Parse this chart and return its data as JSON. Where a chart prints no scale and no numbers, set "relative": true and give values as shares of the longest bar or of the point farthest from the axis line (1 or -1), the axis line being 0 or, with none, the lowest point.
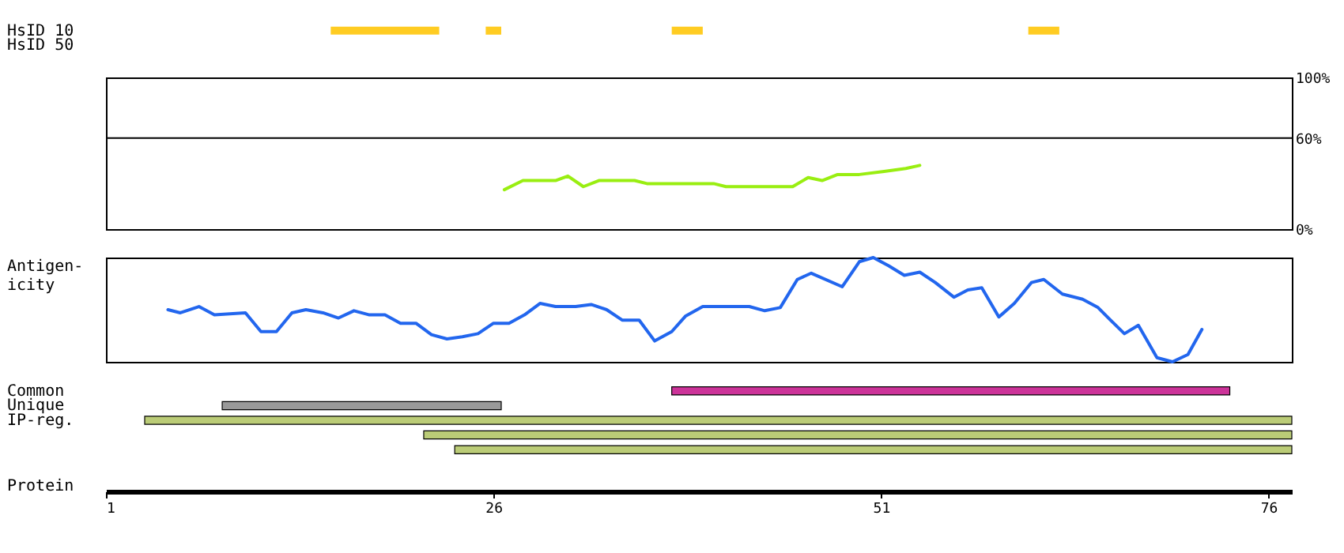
{
  "chart_data": [
    {
      "type": "bar",
      "orientation": "horizontal",
      "categories": [
        "HsID 10",
        "HsID 50"
      ],
      "xticks": [
        1,
        26,
        51,
        76
      ],
      "tick_labels": "y",
      "series": [
        {
          "color": "#ffcc22",
          "values": [
            7,
            null
          ],
          "base": [
            15.5,
            null
          ]
        },
        {
          "color": "#ffcc22",
          "values": [
            1,
            null
          ],
          "base": [
            25.5,
            null
          ]
        },
        {
          "color": "#ffcc22",
          "values": [
            2,
            null
          ],
          "base": [
            37.5,
            null
          ]
        },
        {
          "color": "#ffcc22",
          "values": [
            2,
            null
          ],
          "base": [
            60.5,
            null
          ]
        }
      ]
    },
    {
      "type": "line",
      "xlim": [
        1,
        77.5
      ],
      "ylim": [
        0,
        100
      ],
      "yticks": [
        {
          "value": 0,
          "label": "0%"
        },
        {
          "value": 60,
          "label": "60%"
        },
        {
          "value": 100,
          "label": "100%"
        }
      ],
      "tick_labels": "y",
      "ref_lines": [
        {
          "axis": "y",
          "value": 60
        }
      ],
      "series": [
        {
          "color": "#99ee11",
          "x": [
            26.7,
            27.9,
            30,
            30.8,
            31.8,
            32.8,
            35.1,
            35.9,
            40.2,
            41,
            45.3,
            46.3,
            47.2,
            48.2,
            49.6,
            51.2,
            52.6,
            53.5
          ],
          "values": [
            26,
            32,
            32,
            35,
            28,
            32,
            32,
            30,
            30,
            28,
            28,
            34,
            32,
            36,
            36,
            38,
            40,
            42
          ]
        }
      ]
    },
    {
      "type": "line",
      "ylabel": "Antigen-\nicity",
      "relative": true,
      "xlim": [
        1,
        77.5
      ],
      "tick_labels": false,
      "series": [
        {
          "color": "#2266ee",
          "x": [
            5,
            5.8,
            7,
            8,
            10,
            11,
            12,
            13,
            13.9,
            15,
            16,
            17,
            18,
            19,
            20,
            21,
            22,
            23,
            24,
            25,
            26,
            27,
            28,
            29,
            30,
            31.3,
            32.3,
            33.3,
            34.3,
            35.4,
            36.4,
            37.5,
            38.4,
            39.5,
            42.5,
            43.5,
            44.5,
            45.6,
            46.5,
            48.5,
            49.6,
            50.5,
            51.5,
            52.5,
            53.5,
            54.5,
            55.7,
            56.6,
            57.5,
            58.6,
            59.6,
            60.7,
            61.5,
            62.7,
            64,
            65,
            65.8,
            66.7,
            67.6,
            68.8,
            69.8,
            70.8,
            71.7
          ],
          "values": [
            0.5,
            0.47,
            0.53,
            0.45,
            0.47,
            0.29,
            0.29,
            0.47,
            0.5,
            0.47,
            0.42,
            0.49,
            0.45,
            0.45,
            0.37,
            0.37,
            0.26,
            0.22,
            0.24,
            0.27,
            0.37,
            0.37,
            0.45,
            0.56,
            0.53,
            0.53,
            0.55,
            0.5,
            0.4,
            0.4,
            0.2,
            0.29,
            0.44,
            0.53,
            0.53,
            0.49,
            0.52,
            0.79,
            0.85,
            0.72,
            0.96,
            1,
            0.92,
            0.83,
            0.86,
            0.76,
            0.62,
            0.69,
            0.71,
            0.43,
            0.56,
            0.76,
            0.79,
            0.65,
            0.6,
            0.52,
            0.4,
            0.27,
            0.35,
            0.04,
            0,
            0.07,
            0.31
          ]
        }
      ]
    },
    {
      "type": "bar",
      "orientation": "horizontal",
      "categories": [
        "Common",
        "Unique",
        "IP-reg.",
        null,
        null
      ],
      "xlabel": "Protein",
      "xlim": [
        1,
        77.5
      ],
      "xticks": [
        1,
        26,
        51,
        76
      ],
      "values": [
        36,
        18,
        74,
        56,
        54
      ],
      "base": [
        37.5,
        8.5,
        3.5,
        21.5,
        23.5
      ],
      "colors": [
        "#cc3399",
        "#999999",
        "#bbcc77",
        "#bbcc77",
        "#bbcc77"
      ]
    }
  ]
}
